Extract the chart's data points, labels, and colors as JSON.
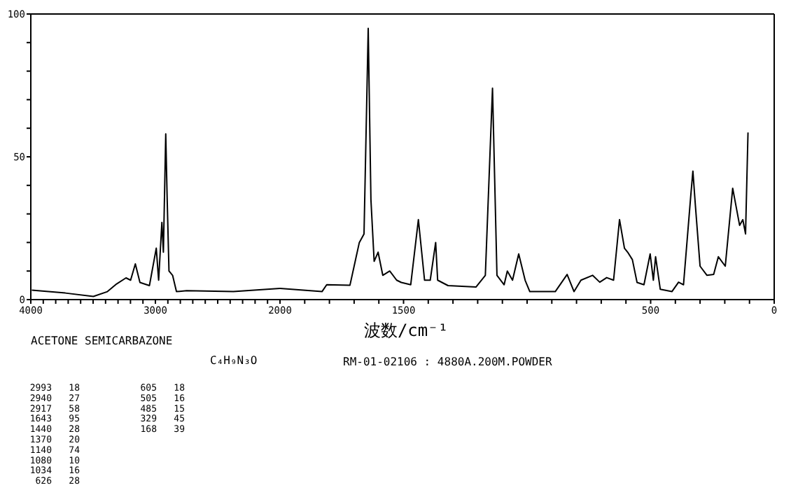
{
  "chart_data": [
    {
      "type": "line",
      "title": "ACETONE SEMICARBAZONE",
      "subtitle": "C₄H₉N₃O",
      "annotations": [
        "RM-01-02106 : 4880A.200M.POWDER",
        "2993 18",
        "2940 27",
        "2917 58",
        "1643 95",
        "1440 28",
        "1370 20",
        "1140 74",
        "1080 10",
        "1034 16",
        "626 28",
        "605 18",
        "505 16",
        "485 15",
        "329 45",
        "168 39"
      ],
      "xlim": [
        4000,
        2000
      ],
      "ylim": [
        0,
        100
      ],
      "xticks": [
        4000,
        3000,
        {
          "value": 3900,
          "label": null
        },
        {
          "value": 3800,
          "label": null
        },
        {
          "value": 3700,
          "label": null
        },
        {
          "value": 3600,
          "label": null
        },
        {
          "value": 3500,
          "label": null
        },
        {
          "value": 3400,
          "label": null
        },
        {
          "value": 3300,
          "label": null
        },
        {
          "value": 3200,
          "label": null
        },
        {
          "value": 3100,
          "label": null
        },
        {
          "value": 2900,
          "label": null
        },
        {
          "value": 2800,
          "label": null
        },
        {
          "value": 2700,
          "label": null
        },
        {
          "value": 2600,
          "label": null
        },
        {
          "value": 2500,
          "label": null
        },
        {
          "value": 2400,
          "label": null
        },
        {
          "value": 2300,
          "label": null
        },
        {
          "value": 2200,
          "label": null
        },
        {
          "value": 2100,
          "label": null
        }
      ],
      "yticks": [
        0,
        50,
        100,
        {
          "value": 10,
          "label": null
        },
        {
          "value": 20,
          "label": null
        },
        {
          "value": 30,
          "label": null
        },
        {
          "value": 40,
          "label": null
        },
        {
          "value": 60,
          "label": null
        },
        {
          "value": 70,
          "label": null
        },
        {
          "value": 80,
          "label": null
        },
        {
          "value": 90,
          "label": null
        }
      ],
      "series": [
        {
          "color": "#000000",
          "x": [
            3992,
            3723,
            3498,
            3385,
            3311,
            3236,
            3199,
            3161,
            3124,
            3048,
            2993,
            2974,
            2948,
            2936,
            2917,
            2906,
            2891,
            2862,
            2831,
            2749,
            2374,
            2000
          ],
          "values": [
            3.3,
            2.3,
            1.1,
            2.8,
            5.5,
            7.6,
            6.8,
            12.5,
            6,
            4.9,
            18,
            6.8,
            27,
            16.6,
            58,
            36,
            10,
            8.5,
            2.8,
            3.1,
            2.8,
            3.9
          ]
        }
      ]
    },
    {
      "type": "line",
      "xlabel": "波数/cm⁻¹",
      "tick_labels": "x",
      "xlim": [
        2000,
        0
      ],
      "ylim": [
        0,
        100
      ],
      "xticks": [
        2000,
        1500,
        500,
        0,
        {
          "value": 1900,
          "label": null
        },
        {
          "value": 1800,
          "label": null
        },
        {
          "value": 1700,
          "label": null
        },
        {
          "value": 1600,
          "label": null
        },
        {
          "value": 1400,
          "label": null
        },
        {
          "value": 1300,
          "label": null
        },
        {
          "value": 1200,
          "label": null
        },
        {
          "value": 1100,
          "label": null
        },
        {
          "value": 1000,
          "label": null
        },
        {
          "value": 900,
          "label": null
        },
        {
          "value": 800,
          "label": null
        },
        {
          "value": 700,
          "label": null
        },
        {
          "value": 600,
          "label": null
        },
        {
          "value": 400,
          "label": null
        },
        {
          "value": 300,
          "label": null
        },
        {
          "value": 200,
          "label": null
        },
        {
          "value": 100,
          "label": null
        }
      ],
      "series": [
        {
          "color": "#000000",
          "x": [
            2000,
            1830,
            1811,
            1717,
            1679,
            1660,
            1643,
            1632,
            1619,
            1603,
            1584,
            1556,
            1528,
            1509,
            1471,
            1440,
            1415,
            1392,
            1370,
            1362,
            1320,
            1207,
            1169,
            1140,
            1122,
            1093,
            1080,
            1059,
            1034,
            1008,
            989,
            886,
            838,
            810,
            782,
            735,
            706,
            678,
            650,
            626,
            606,
            593,
            574,
            555,
            527,
            502,
            489,
            480,
            461,
            414,
            387,
            367,
            338,
            329,
            319,
            300,
            272,
            245,
            226,
            198,
            168,
            140,
            127,
            116,
            106
          ],
          "values": [
            3.9,
            2.8,
            5.2,
            5,
            20,
            23,
            95,
            35,
            13.4,
            16.6,
            8.5,
            10,
            6.8,
            6,
            5.2,
            28,
            6.8,
            6.8,
            20,
            6.8,
            4.9,
            4.4,
            8.5,
            74,
            8.5,
            5.2,
            10,
            6.8,
            16,
            6.8,
            2.8,
            2.8,
            8.8,
            2.8,
            6.8,
            8.5,
            6.1,
            7.7,
            6.8,
            28,
            18,
            16.6,
            14,
            6,
            5.2,
            16,
            6.8,
            15,
            3.6,
            2.8,
            6.1,
            5.2,
            36,
            45,
            33,
            11.7,
            8.5,
            8.8,
            15,
            11.7,
            39,
            26,
            28,
            23,
            58.5
          ]
        }
      ]
    }
  ]
}
